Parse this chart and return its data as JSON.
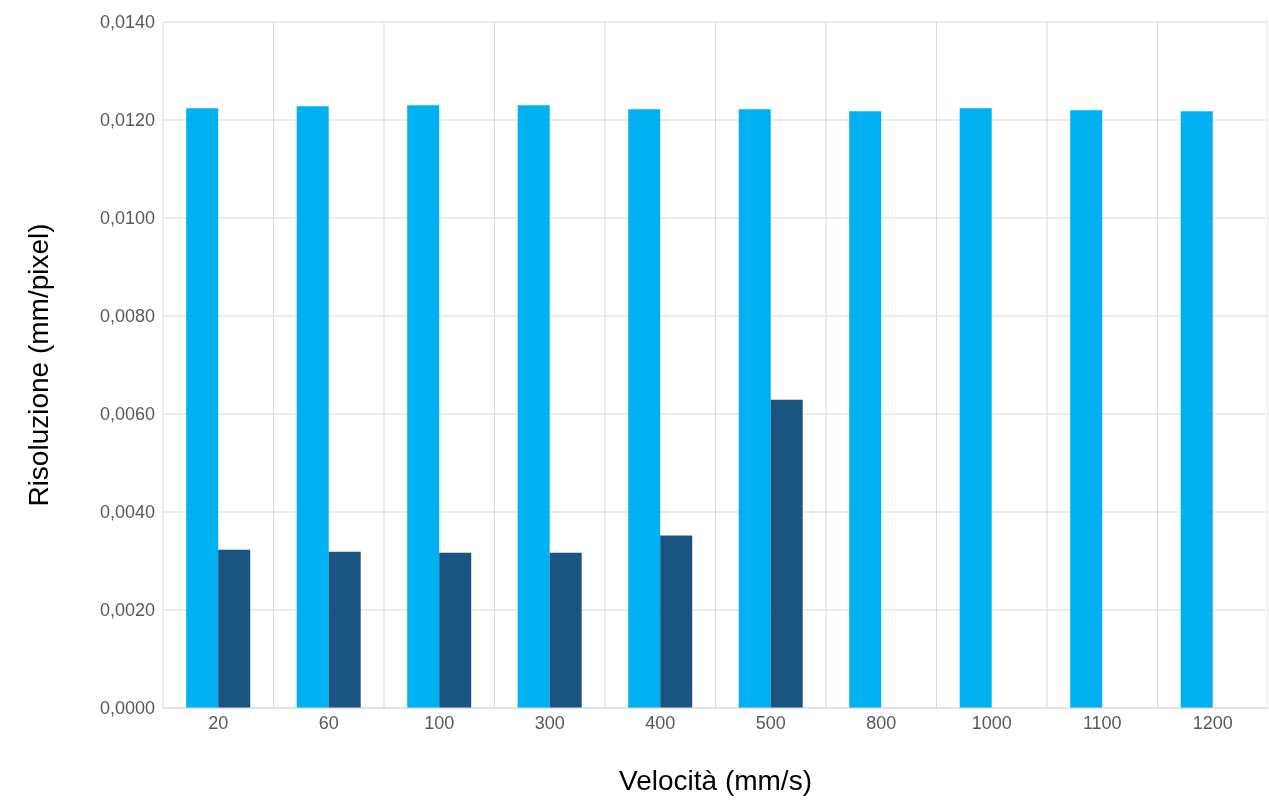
{
  "chart_data": {
    "type": "bar",
    "xlabel": "Velocità (mm/s)",
    "ylabel": "Risoluzione (mm/pixel)",
    "categories": [
      "20",
      "60",
      "100",
      "300",
      "400",
      "500",
      "800",
      "1000",
      "1100",
      "1200"
    ],
    "series": [
      {
        "color": "#00b0f0",
        "values": [
          0.01224,
          0.01228,
          0.0123,
          0.0123,
          0.01222,
          0.01222,
          0.01218,
          0.01224,
          0.0122,
          0.01218
        ]
      },
      {
        "color": "#1a5480",
        "values": [
          0.00323,
          0.00319,
          0.00317,
          0.00317,
          0.00352,
          0.00629,
          null,
          null,
          null,
          null
        ]
      }
    ],
    "ylim": [
      0,
      0.014
    ],
    "yticks": [
      {
        "value": 0,
        "label": "0,0000"
      },
      {
        "value": 0.002,
        "label": "0,0020"
      },
      {
        "value": 0.004,
        "label": "0,0040"
      },
      {
        "value": 0.006,
        "label": "0,0060"
      },
      {
        "value": 0.008,
        "label": "0,0080"
      },
      {
        "value": 0.01,
        "label": "0,0100"
      },
      {
        "value": 0.012,
        "label": "0,0120"
      },
      {
        "value": 0.014,
        "label": "0,0140"
      }
    ],
    "grid": true,
    "legend": false
  }
}
